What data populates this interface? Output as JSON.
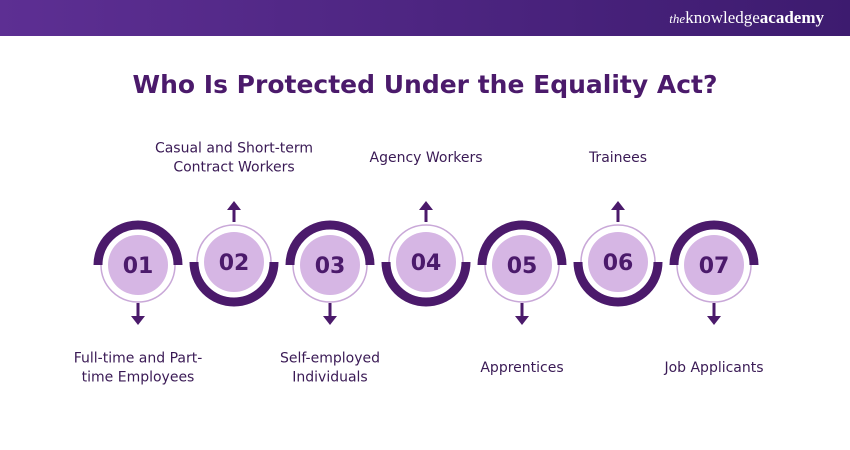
{
  "header": {
    "brand_prefix": "the",
    "brand_name": "knowledge",
    "brand_suffix": "academy"
  },
  "title": "Who Is Protected Under the Equality Act?",
  "items": [
    {
      "number": "01",
      "label": [
        "Full-time and Part-",
        "time Employees"
      ]
    },
    {
      "number": "02",
      "label": [
        "Casual and Short-term",
        "Contract Workers"
      ]
    },
    {
      "number": "03",
      "label": [
        "Self-employed",
        "Individuals"
      ]
    },
    {
      "number": "04",
      "label": [
        "Agency Workers"
      ]
    },
    {
      "number": "05",
      "label": [
        "Apprentices"
      ]
    },
    {
      "number": "06",
      "label": [
        "Trainees"
      ]
    },
    {
      "number": "07",
      "label": [
        "Job Applicants"
      ]
    }
  ]
}
